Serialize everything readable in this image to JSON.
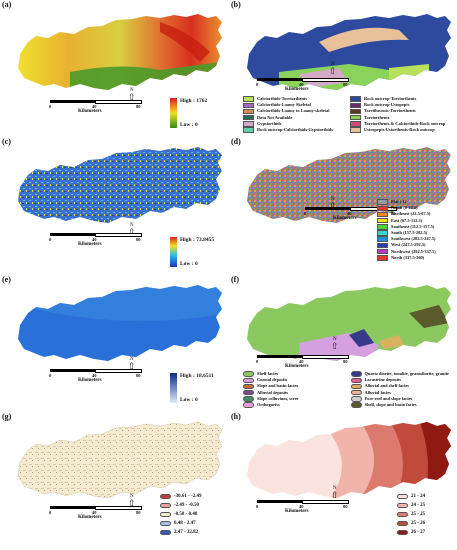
{
  "panels": {
    "a": {
      "label": "(a)",
      "high": "High : 1762",
      "low": "Low : 0"
    },
    "b": {
      "label": "(b)",
      "legend": [
        {
          "name": "Calciorthids-Torriorthents",
          "color": "#b9e05a"
        },
        {
          "name": "Rock outcrop-Torriorthents",
          "color": "#2e4a9e"
        },
        {
          "name": "Calciorthids-Loamy Skeletal",
          "color": "#a566c4"
        },
        {
          "name": "Rock outcrop-Ustopepts",
          "color": "#6e2a66"
        },
        {
          "name": "Calciorthids-Loamy to Loamy-skeletal",
          "color": "#d98a52"
        },
        {
          "name": "Torrifluvents-Torriorthents",
          "color": "#5d3a1a"
        },
        {
          "name": "Data Not Available",
          "color": "#2a6e5a"
        },
        {
          "name": "Torriorthents",
          "color": "#89d35a"
        },
        {
          "name": "Gypsiorthids",
          "color": "#d6a8c8"
        },
        {
          "name": "Torriorthents & Calciorthids-Rock outcrop",
          "color": "#d04a7a"
        },
        {
          "name": "Rock outcrop-Calciorthids-Gypsiorthids",
          "color": "#5fd0a8"
        },
        {
          "name": "Ustropepts-Ustorthents-Rock outcrop",
          "color": "#e8c09a"
        }
      ]
    },
    "c": {
      "label": "(c)",
      "high": "High : 73.8455",
      "low": "Low : 0"
    },
    "d": {
      "label": "(d)",
      "legend": [
        {
          "name": "Flat (-1)",
          "color": "#9a9a9a"
        },
        {
          "name": "North (0-22.5)",
          "color": "#e23a2a"
        },
        {
          "name": "Northeast (22.5-67.5)",
          "color": "#f28a1a"
        },
        {
          "name": "East (67.5-112.5)",
          "color": "#f2e21a"
        },
        {
          "name": "Southeast (112.5-157.5)",
          "color": "#4ad23a"
        },
        {
          "name": "South (157.5-202.5)",
          "color": "#3ad2d2"
        },
        {
          "name": "Southwest (202.5-247.5)",
          "color": "#2a8ae2"
        },
        {
          "name": "West (247.5-292.5)",
          "color": "#2a3ac2"
        },
        {
          "name": "Northwest (292.5-337.5)",
          "color": "#c23ac2"
        },
        {
          "name": "North (337.5-360)",
          "color": "#e23a2a"
        }
      ]
    },
    "e": {
      "label": "(e)",
      "high": "High : 18.6511",
      "low": "Low : 0"
    },
    "f": {
      "label": "(f)",
      "legend": [
        {
          "name": "Shelf facies",
          "color": "#8cc860"
        },
        {
          "name": "Quartz diorite, tonalite, granodiorite, granite",
          "color": "#3a3a8a"
        },
        {
          "name": "Coastal deposits",
          "color": "#d4a0e0"
        },
        {
          "name": "Lacustrine deposits",
          "color": "#e06090"
        },
        {
          "name": "Slope and basin facies",
          "color": "#c86a30"
        },
        {
          "name": "Alluvial and shelf facies",
          "color": "#d8b060"
        },
        {
          "name": "Alluvial deposits",
          "color": "#7a4a8a"
        },
        {
          "name": "Alluvial facies",
          "color": "#f0b090"
        },
        {
          "name": "Slope colluvium, scree",
          "color": "#4a8a6a"
        },
        {
          "name": "Fore-reef and slope facies",
          "color": "#d0d0d0"
        },
        {
          "name": "Orthogneiss",
          "color": "#f09ad8"
        },
        {
          "name": "Shelf, slope and basin facies",
          "color": "#5a5a2a"
        }
      ]
    },
    "g": {
      "label": "(g)",
      "legend": [
        {
          "name": "-30.61 - -2.49",
          "color": "#c04040"
        },
        {
          "name": "-2.49 - -0.50",
          "color": "#e8a0a0"
        },
        {
          "name": "-0.50 - 0.48",
          "color": "#f5efcf"
        },
        {
          "name": "0.48 - 2.47",
          "color": "#a8c0e8"
        },
        {
          "name": "2.47 - 32.82",
          "color": "#3a5ab0"
        }
      ]
    },
    "h": {
      "label": "(h)",
      "legend": [
        {
          "name": "21 - 24",
          "color": "#fbe3df"
        },
        {
          "name": "24 - 25",
          "color": "#f0b4aa"
        },
        {
          "name": "25 - 25",
          "color": "#dc7a6e"
        },
        {
          "name": "25 - 26",
          "color": "#c04a3c"
        },
        {
          "name": "26 - 27",
          "color": "#8e1a12"
        }
      ]
    }
  },
  "scale": {
    "t0": "0",
    "t1": "40",
    "t2": "80",
    "unit": "Kilometers"
  },
  "north": "N"
}
